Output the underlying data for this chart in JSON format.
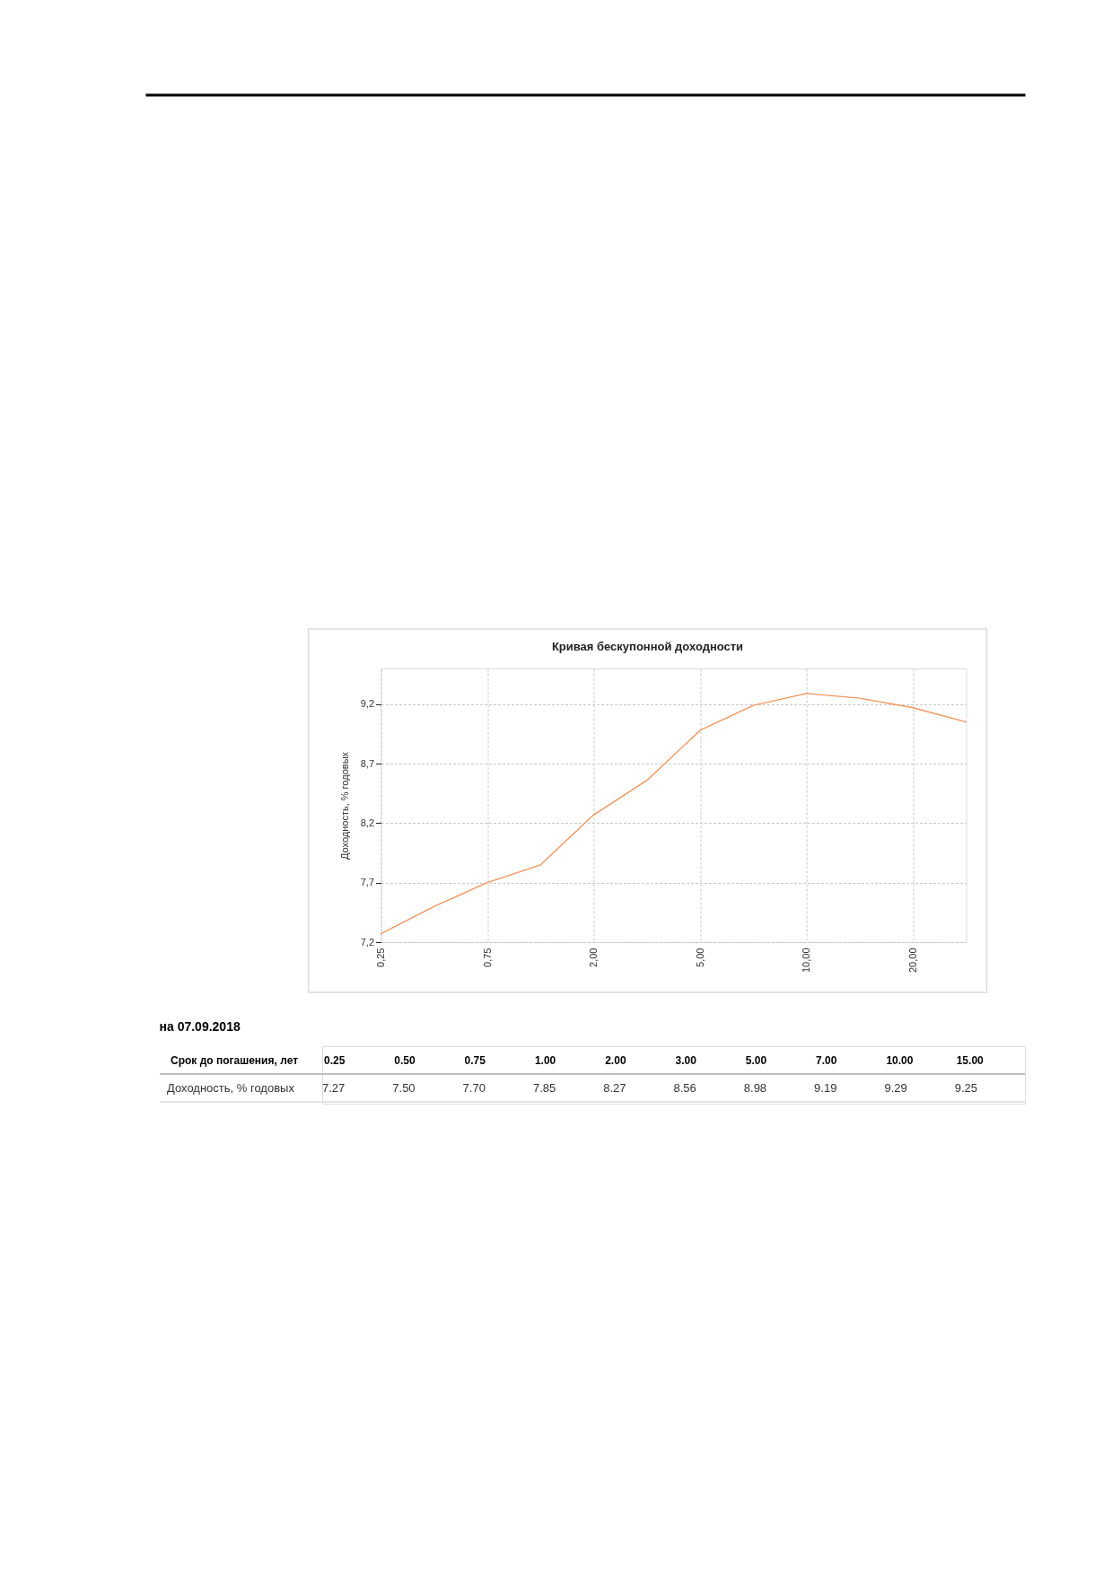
{
  "chart_data": [
    {
      "type": "line",
      "title": "Кривая бескупонной доходности",
      "ylabel": "Доходность, % годовых",
      "categories": [
        "0,25",
        null,
        "0,75",
        null,
        "2,00",
        null,
        "5,00",
        null,
        "10,00",
        null,
        "20,00",
        null
      ],
      "series": [
        {
          "color": "#f0965e",
          "values": [
            7.27,
            7.5,
            7.7,
            7.85,
            8.27,
            8.56,
            8.98,
            9.19,
            9.29,
            9.25,
            9.17,
            9.05
          ]
        }
      ],
      "ylim": [
        7.2,
        9.5
      ],
      "yticks": [
        {
          "value": 7.2,
          "label": "7,2"
        },
        {
          "value": 7.7,
          "label": "7,7"
        },
        {
          "value": 8.2,
          "label": "8,2"
        },
        {
          "value": 8.7,
          "label": "8,7"
        },
        {
          "value": 9.2,
          "label": "9,2"
        }
      ],
      "grid": true
    },
    {
      "type": "heatmap",
      "title": "на 07.09.2018",
      "xlabel": "Срок до погашения, лет",
      "categories": [
        "0.25",
        "0.50",
        "0.75",
        "1.00",
        "2.00",
        "3.00",
        "5.00",
        "7.00",
        "10.00",
        "15.00"
      ],
      "y_categories": [
        "Доходность, % годовых"
      ],
      "cells": [
        [
          7.27,
          7.5,
          7.7,
          7.85,
          8.27,
          8.56,
          8.98,
          9.19,
          9.29,
          9.25
        ]
      ],
      "cell_labels": [
        [
          "7.27",
          "7.50",
          "7.70",
          "7.85",
          "8.27",
          "8.56",
          "8.98",
          "9.19",
          "9.29",
          "9.25"
        ]
      ]
    }
  ]
}
